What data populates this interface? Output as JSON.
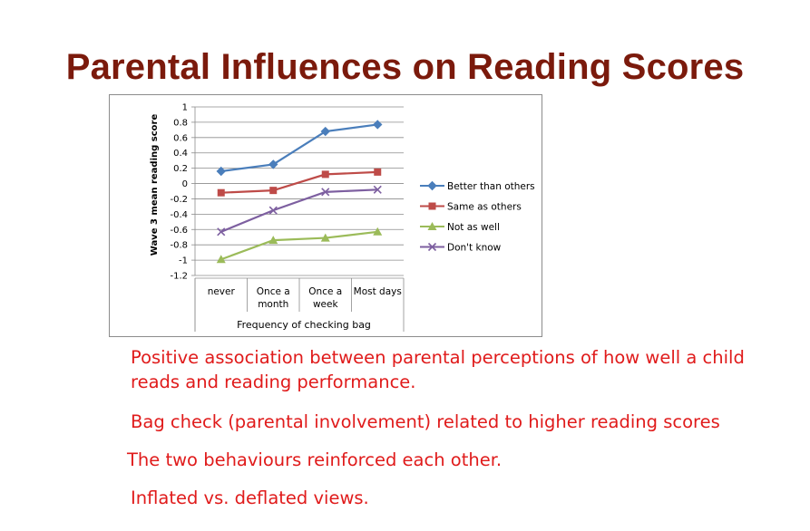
{
  "slide": {
    "title": "Parental Influences on Reading Scores",
    "bullets": [
      "Positive association between parental perceptions of how well a child reads and reading performance.",
      "Bag check (parental involvement) related to higher reading scores",
      "The two behaviours reinforced each other.",
      "Inflated vs. deflated views."
    ]
  },
  "chart_data": {
    "type": "line",
    "title": "",
    "xlabel": "Frequency of checking bag",
    "ylabel": "Wave 3 mean reading score",
    "categories": [
      [
        "never"
      ],
      [
        "Once a",
        "month"
      ],
      [
        "Once a",
        "week"
      ],
      [
        "Most days"
      ]
    ],
    "ylim": [
      -1.2,
      1
    ],
    "yticks": [
      1,
      0.8,
      0.6,
      0.4,
      0.2,
      0,
      -0.2,
      -0.4,
      -0.6,
      -0.8,
      -1,
      -1.2
    ],
    "ytick_labels": [
      "1",
      "0.8",
      "0.6",
      "0.4",
      "0.2",
      "0",
      "-0.2",
      "-0.4",
      "-0.6",
      "-0.8",
      "-1",
      "-1.2"
    ],
    "grid": true,
    "legend_position": "right",
    "series": [
      {
        "name": "Better than others",
        "values": [
          0.16,
          0.25,
          0.68,
          0.77
        ],
        "color": "#4a7ebb",
        "marker": "diamond"
      },
      {
        "name": "Same as others",
        "values": [
          -0.12,
          -0.09,
          0.12,
          0.15
        ],
        "color": "#be4b48",
        "marker": "square"
      },
      {
        "name": "Not as well",
        "values": [
          -0.99,
          -0.74,
          -0.71,
          -0.63
        ],
        "color": "#9bbb59",
        "marker": "triangle"
      },
      {
        "name": "Don't know",
        "values": [
          -0.63,
          -0.35,
          -0.11,
          -0.08
        ],
        "color": "#7d5fa0",
        "marker": "x"
      }
    ]
  }
}
